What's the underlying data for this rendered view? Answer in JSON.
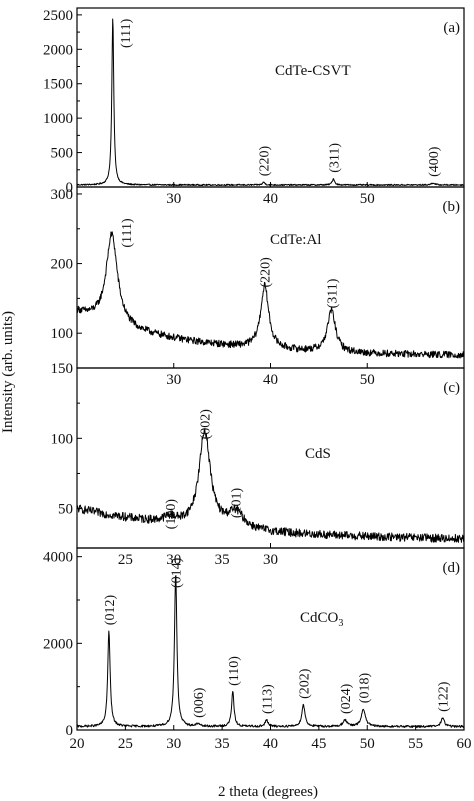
{
  "figure": {
    "ylabel": "Intensity (arb. units)",
    "xlabel": "2 theta (degrees)"
  },
  "chart_data": [
    {
      "type": "line",
      "panel": "(a)",
      "annotation": "CdTe-CSVT",
      "xlim": [
        20,
        60
      ],
      "ylim": [
        0,
        2600
      ],
      "yticks": [
        0,
        500,
        1000,
        1500,
        2000,
        2500
      ],
      "xticks": [
        30,
        40,
        50
      ],
      "baseline": 30,
      "noise": 10,
      "peaks": [
        {
          "label": "(111)",
          "x": 23.7,
          "height": 2430,
          "width": 0.12
        },
        {
          "label": "(220)",
          "x": 39.3,
          "height": 40,
          "width": 0.15
        },
        {
          "label": "(311)",
          "x": 46.5,
          "height": 90,
          "width": 0.15
        },
        {
          "label": "(400)",
          "x": 56.8,
          "height": 30,
          "width": 0.2
        }
      ]
    },
    {
      "type": "line",
      "panel": "(b)",
      "annotation": "CdTe:Al",
      "xlim": [
        20,
        60
      ],
      "ylim": [
        50,
        310
      ],
      "yticks": [
        100,
        200,
        300
      ],
      "xticks": [
        30,
        40,
        50
      ],
      "background": {
        "start": 130,
        "end": 67,
        "decay": 11
      },
      "noise": 5,
      "peaks": [
        {
          "label": "(111)",
          "x": 23.6,
          "height": 130,
          "width": 0.7
        },
        {
          "label": "(220)",
          "x": 39.4,
          "height": 90,
          "width": 0.5
        },
        {
          "label": "(311)",
          "x": 46.3,
          "height": 60,
          "width": 0.5
        }
      ]
    },
    {
      "type": "line",
      "panel": "(c)",
      "annotation": "CdS",
      "xlim": [
        20,
        40
      ],
      "ylim": [
        22,
        150
      ],
      "yticks": [
        50,
        100,
        150
      ],
      "xticks": [
        30
      ],
      "background": {
        "start": 50,
        "end": 27,
        "decay": 15
      },
      "noise": 3,
      "peaks": [
        {
          "label": "(100)",
          "x": 24.8,
          "height": 4,
          "width": 0.4
        },
        {
          "label": "(002)",
          "x": 26.6,
          "height": 68,
          "width": 0.35
        },
        {
          "label": "(101)",
          "x": 28.2,
          "height": 12,
          "width": 0.5
        }
      ]
    },
    {
      "type": "line",
      "panel": "(d)",
      "annotation": "CdCO",
      "annotation_sub": "3",
      "xlim": [
        20,
        60
      ],
      "ylim": [
        0,
        4200
      ],
      "yticks": [
        0,
        2000,
        4000
      ],
      "xticks": [
        20,
        25,
        30,
        35,
        40,
        45,
        50,
        55,
        60
      ],
      "top_ticks": [
        25,
        30,
        35
      ],
      "baseline": 80,
      "noise": 25,
      "peaks": [
        {
          "label": "(012)",
          "x": 23.3,
          "height": 2200,
          "width": 0.15
        },
        {
          "label": "(014)",
          "x": 30.2,
          "height": 3560,
          "width": 0.15
        },
        {
          "label": "(006)",
          "x": 32.5,
          "height": 60,
          "width": 0.2
        },
        {
          "label": "(110)",
          "x": 36.1,
          "height": 800,
          "width": 0.15
        },
        {
          "label": "(113)",
          "x": 39.6,
          "height": 150,
          "width": 0.18
        },
        {
          "label": "(202)",
          "x": 43.4,
          "height": 500,
          "width": 0.2
        },
        {
          "label": "(024)",
          "x": 47.7,
          "height": 150,
          "width": 0.25
        },
        {
          "label": "(018)",
          "x": 49.6,
          "height": 400,
          "width": 0.25
        },
        {
          "label": "(122)",
          "x": 57.8,
          "height": 200,
          "width": 0.2
        }
      ]
    }
  ]
}
